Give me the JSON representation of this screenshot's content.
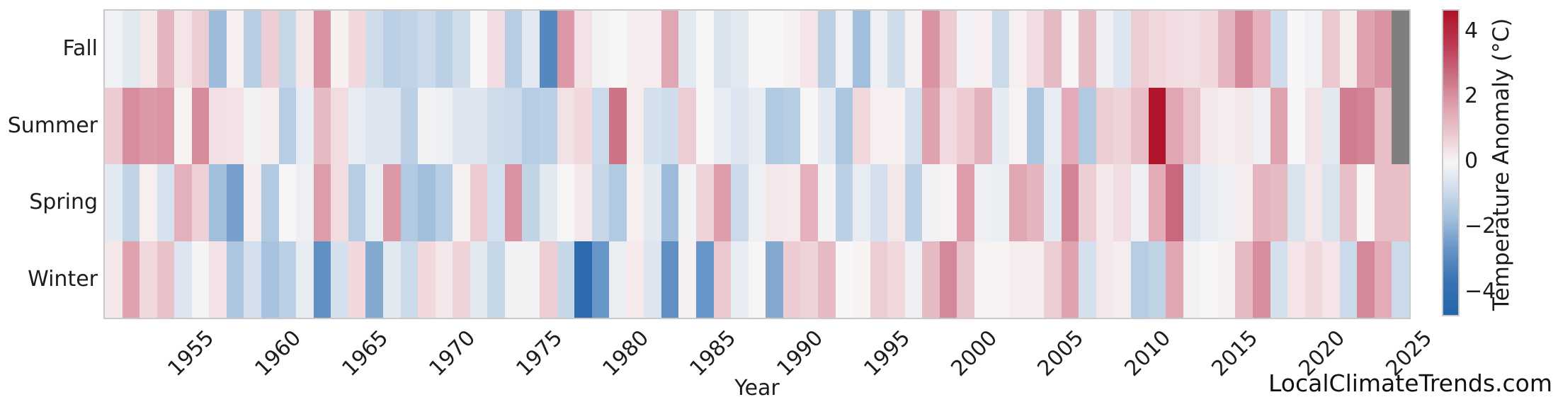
{
  "watermark": "LocalClimateTrends.com",
  "x_axis": {
    "label": "Year",
    "tick_labels": [
      "1955",
      "1960",
      "1965",
      "1970",
      "1975",
      "1980",
      "1985",
      "1990",
      "1995",
      "2000",
      "2005",
      "2010",
      "2015",
      "2020",
      "2025"
    ]
  },
  "y_axis": {
    "tick_labels": [
      "Fall",
      "Summer",
      "Spring",
      "Winter"
    ]
  },
  "colorbar": {
    "label": "Temperature Anomaly (°C)",
    "tick_labels": [
      "4",
      "2",
      "0",
      "−2",
      "−4"
    ],
    "tick_values": [
      4,
      2,
      0,
      -2,
      -4
    ],
    "vmin": -4.67,
    "vmax": 4.67
  },
  "colors": {
    "background": "#ffffff",
    "frame": "#c9c9c9",
    "text": "#1c1c1c",
    "missing": "#7f7f7f"
  },
  "chart_data": {
    "type": "heatmap",
    "title": "",
    "xlabel": "Year",
    "value_label": "Temperature Anomaly (°C)",
    "rows": [
      "Fall",
      "Summer",
      "Spring",
      "Winter"
    ],
    "x_start_year": 1950,
    "x_end_year": 2024,
    "x_tick_years": [
      1955,
      1960,
      1965,
      1970,
      1975,
      1980,
      1985,
      1990,
      1995,
      2000,
      2005,
      2010,
      2015,
      2020,
      2025
    ],
    "missing_cells": [
      {
        "row": "Fall",
        "year": 2024
      },
      {
        "row": "Summer",
        "year": 2024
      }
    ],
    "colorbar_range": [
      -4.67,
      4.67
    ],
    "legend_position": "right",
    "colormap_stops": [
      [
        -4.7,
        "#2264ab"
      ],
      [
        -3.6,
        "#3a74b4"
      ],
      [
        -2.6,
        "#6996c8"
      ],
      [
        -1.8,
        "#9cbbda"
      ],
      [
        -1.0,
        "#c6d7e8"
      ],
      [
        -0.4,
        "#e2e9f1"
      ],
      [
        0.0,
        "#f7f5f5"
      ],
      [
        0.4,
        "#f3e2e5"
      ],
      [
        1.0,
        "#e9c3cb"
      ],
      [
        1.8,
        "#dd9dab"
      ],
      [
        2.6,
        "#cc7386"
      ],
      [
        3.6,
        "#bc3c55"
      ],
      [
        4.7,
        "#ae1127"
      ]
    ],
    "series": [
      {
        "name": "Fall",
        "values": [
          -0.15,
          -0.45,
          0.3,
          1.3,
          0.35,
          0.8,
          -1.8,
          0.15,
          -1.3,
          0.8,
          -1.0,
          0.3,
          2.0,
          0.1,
          0.6,
          -0.8,
          -1.2,
          -1.1,
          -0.9,
          -1.2,
          -0.8,
          0.0,
          0.5,
          -1.3,
          -0.4,
          -3.0,
          1.9,
          0.4,
          -0.1,
          0.0,
          0.2,
          0.2,
          1.6,
          -0.4,
          0.0,
          -0.6,
          -0.4,
          0.0,
          0.0,
          0.1,
          0.35,
          -1.2,
          -0.15,
          -1.7,
          -0.2,
          -0.8,
          0.1,
          2.0,
          0.85,
          -0.15,
          0.15,
          -0.9,
          0.15,
          0.5,
          1.2,
          0.0,
          1.2,
          -0.2,
          -0.5,
          0.8,
          0.6,
          0.5,
          0.45,
          0.6,
          1.3,
          2.2,
          1.4,
          -0.8,
          0.0,
          -0.15,
          0.9,
          0.2,
          1.7,
          2.0,
          null
        ]
      },
      {
        "name": "Summer",
        "values": [
          0.85,
          2.1,
          1.9,
          1.95,
          0.05,
          2.15,
          0.45,
          0.4,
          -0.1,
          0.2,
          -1.3,
          -0.3,
          1.2,
          0.5,
          -0.3,
          -0.5,
          -0.5,
          -1.2,
          -0.1,
          -0.2,
          -0.5,
          -0.5,
          -0.8,
          -0.9,
          -1.3,
          -1.2,
          0.4,
          0.6,
          -0.9,
          2.6,
          0.2,
          -0.7,
          -0.8,
          0.8,
          0.0,
          -0.3,
          -0.5,
          -0.3,
          -1.4,
          -1.3,
          0.0,
          -0.4,
          -1.5,
          0.6,
          0.15,
          0.1,
          -0.7,
          1.7,
          0.55,
          0.85,
          1.35,
          -0.35,
          0.05,
          -1.5,
          -0.3,
          1.5,
          -1.4,
          0.8,
          0.7,
          1.1,
          4.6,
          1.6,
          1.0,
          0.3,
          0.2,
          0.3,
          -0.2,
          1.7,
          0.0,
          0.4,
          -0.4,
          2.4,
          2.3,
          1.1,
          null
        ]
      },
      {
        "name": "Spring",
        "values": [
          -0.4,
          -1.1,
          0.15,
          -0.65,
          1.4,
          0.75,
          -1.7,
          -2.4,
          0.2,
          -1.4,
          0.0,
          -0.2,
          1.8,
          0.5,
          -1.3,
          -0.3,
          1.9,
          -1.4,
          -1.7,
          -1.3,
          0.1,
          0.85,
          -0.75,
          2.0,
          -1.1,
          -0.4,
          0.0,
          0.3,
          -1.0,
          -1.4,
          0.1,
          -0.4,
          -1.8,
          -0.1,
          0.7,
          1.8,
          -0.9,
          -0.2,
          0.3,
          0.25,
          1.4,
          -0.1,
          -1.2,
          -0.3,
          -0.7,
          0.3,
          -1.2,
          -0.1,
          0.05,
          1.8,
          -0.2,
          -0.25,
          1.6,
          1.3,
          -0.4,
          2.3,
          0.8,
          0.3,
          0.5,
          -0.2,
          1.5,
          2.8,
          -0.5,
          -0.3,
          -0.2,
          0.2,
          1.3,
          1.2,
          -0.6,
          0.3,
          -0.6,
          1.1,
          0.0,
          1.1,
          1.1
        ]
      },
      {
        "name": "Winter",
        "values": [
          0.3,
          1.7,
          0.6,
          1.05,
          -0.5,
          -0.05,
          0.4,
          -1.5,
          -0.7,
          -1.6,
          -1.2,
          -0.3,
          -2.8,
          -0.7,
          0.6,
          -2.2,
          -0.4,
          -0.9,
          0.6,
          0.3,
          0.7,
          -0.4,
          -1.0,
          -0.1,
          -0.1,
          0.8,
          -1.0,
          -4.2,
          -2.6,
          -0.25,
          0.25,
          -0.5,
          -2.8,
          0.1,
          -2.6,
          0.9,
          -0.3,
          0.0,
          -2.2,
          0.85,
          0.7,
          1.2,
          0.0,
          0.05,
          0.8,
          0.6,
          -0.2,
          1.2,
          2.2,
          1.0,
          0.05,
          0.05,
          0.2,
          0.2,
          0.8,
          1.7,
          -0.7,
          0.3,
          0.2,
          -1.3,
          -1.1,
          1.6,
          -0.1,
          0.0,
          0.1,
          1.2,
          2.1,
          -0.7,
          0.35,
          0.6,
          0.35,
          -0.9,
          2.2,
          1.5,
          -0.9
        ]
      }
    ]
  }
}
